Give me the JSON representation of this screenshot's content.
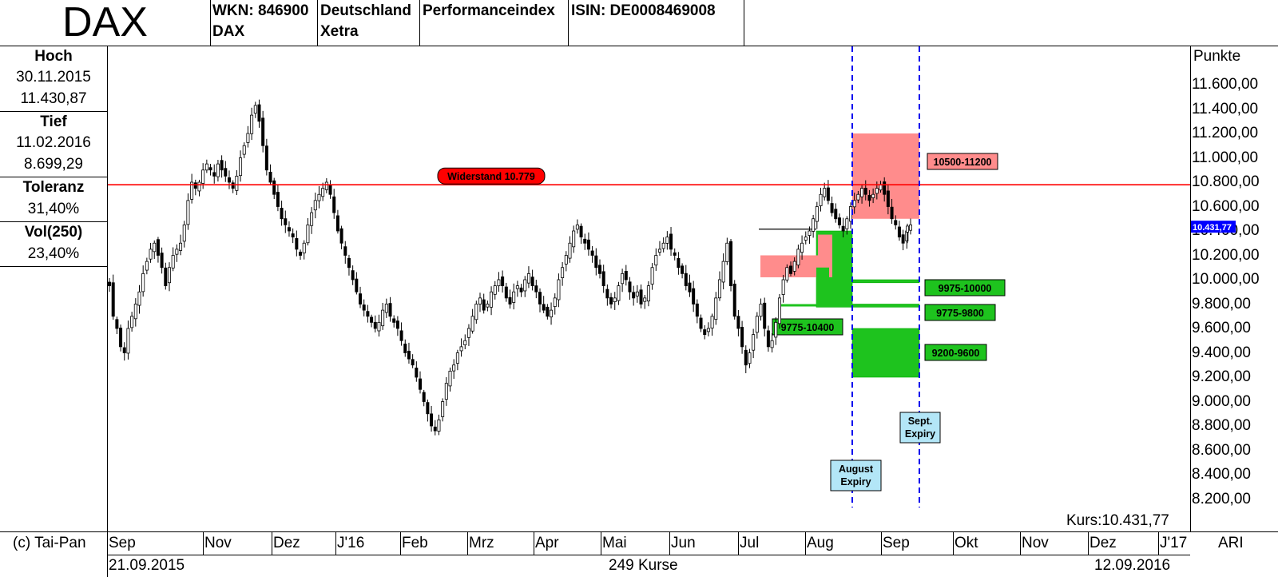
{
  "header": {
    "title": "DAX",
    "wkn": "WKN: 846900",
    "wkn_sub": "DAX",
    "country": "Deutschland",
    "exchange": "Xetra",
    "index_type": "Performanceindex",
    "isin": "ISIN: DE0008469008"
  },
  "sidebar": {
    "high_label": "Hoch",
    "high_date": "30.11.2015",
    "high_value": "11.430,87",
    "low_label": "Tief",
    "low_date": "11.02.2016",
    "low_value": "8.699,29",
    "tolerance_label": "Toleranz",
    "tolerance_value": "31,40%",
    "vol_label": "Vol(250)",
    "vol_value": "23,40%"
  },
  "footer": {
    "copyright": "(c) Tai-Pan",
    "start_date": "21.09.2015",
    "count": "249 Kurse",
    "end_date": "12.09.2016",
    "indicator": "ARI"
  },
  "chart_data": {
    "type": "candlestick",
    "ylabel": "Punkte",
    "ylim": [
      8100,
      11850
    ],
    "y_ticks": [
      "8.200,00",
      "8.400,00",
      "8.600,00",
      "8.800,00",
      "9.000,00",
      "9.200,00",
      "9.400,00",
      "9.600,00",
      "9.800,00",
      "10.000,00",
      "10.200,00",
      "10.400,00",
      "10.600,00",
      "10.800,00",
      "11.000,00",
      "11.200,00",
      "11.400,00",
      "11.600,00"
    ],
    "y_tick_values": [
      8200,
      8400,
      8600,
      8800,
      9000,
      9200,
      9400,
      9600,
      9800,
      10000,
      10200,
      10400,
      10600,
      10800,
      11000,
      11200,
      11400,
      11600
    ],
    "x_months": [
      "Sep",
      "Nov",
      "Dez",
      "J'16",
      "Feb",
      "Mrz",
      "Apr",
      "Mai",
      "Jun",
      "Jul",
      "Aug",
      "Sep",
      "Okt",
      "Nov",
      "Dez",
      "J'17"
    ],
    "current_price": "10.431,77",
    "price_label": "Kurs:10.431,77",
    "current_value": 10431.77,
    "resistance": {
      "label": "Widerstand 10.779",
      "value": 10779
    },
    "expiry_labels": [
      {
        "line1": "August",
        "line2": "Expiry"
      },
      {
        "line1": "Sept.",
        "line2": "Expiry"
      }
    ],
    "zones": [
      {
        "label": "10500-11200",
        "low": 10500,
        "high": 11200,
        "color": "#ff8c8c"
      },
      {
        "label": "9975-10000",
        "low": 9975,
        "high": 10000,
        "color": "#1ec31e"
      },
      {
        "label": "9775-9800",
        "low": 9775,
        "high": 9800,
        "color": "#1ec31e"
      },
      {
        "label": "9775-10400",
        "low": 9775,
        "high": 10400,
        "color": "#1ec31e"
      },
      {
        "label": "9200-9600",
        "low": 9200,
        "high": 9600,
        "color": "#1ec31e"
      }
    ],
    "series_close": [
      9950,
      9700,
      9600,
      9450,
      9400,
      9600,
      9700,
      9800,
      9900,
      10050,
      10150,
      10250,
      10300,
      10200,
      10100,
      9950,
      10100,
      10200,
      10250,
      10300,
      10450,
      10650,
      10800,
      10750,
      10800,
      10900,
      10950,
      10900,
      10850,
      10950,
      10900,
      10850,
      10800,
      10750,
      10850,
      11000,
      11100,
      11200,
      11350,
      11430,
      11300,
      11100,
      10900,
      10800,
      10700,
      10600,
      10500,
      10450,
      10400,
      10350,
      10250,
      10200,
      10300,
      10450,
      10550,
      10650,
      10700,
      10750,
      10800,
      10700,
      10550,
      10400,
      10300,
      10200,
      10100,
      10000,
      9900,
      9800,
      9750,
      9700,
      9650,
      9600,
      9650,
      9750,
      9800,
      9700,
      9650,
      9600,
      9500,
      9400,
      9350,
      9300,
      9200,
      9100,
      9000,
      8900,
      8800,
      8760,
      8850,
      9000,
      9150,
      9250,
      9300,
      9400,
      9450,
      9500,
      9600,
      9700,
      9800,
      9850,
      9750,
      9800,
      9900,
      9950,
      10000,
      9950,
      9850,
      9800,
      9900,
      9950,
      9900,
      10000,
      10050,
      9950,
      9900,
      9800,
      9750,
      9700,
      9750,
      9850,
      10000,
      10100,
      10200,
      10300,
      10400,
      10450,
      10350,
      10300,
      10250,
      10200,
      10100,
      10050,
      9950,
      9850,
      9800,
      9850,
      9950,
      10050,
      10000,
      9900,
      9850,
      9900,
      9800,
      9850,
      9950,
      10100,
      10200,
      10250,
      10300,
      10350,
      10250,
      10200,
      10100,
      10050,
      9950,
      9900,
      9800,
      9700,
      9600,
      9550,
      9600,
      9700,
      9850,
      10000,
      10150,
      10300,
      9950,
      9700,
      9600,
      9450,
      9300,
      9400,
      9550,
      9700,
      9800,
      9600,
      9450,
      9500,
      9650,
      9850,
      10000,
      10100,
      10050,
      10150,
      10250,
      10300,
      10350,
      10400,
      10500,
      10600,
      10700,
      10750,
      10650,
      10550,
      10500,
      10450,
      10400,
      10500,
      10600,
      10650,
      10700,
      10750,
      10700,
      10650,
      10700,
      10750,
      10780,
      10700,
      10600,
      10500,
      10450,
      10350,
      10300,
      10400,
      10450
    ]
  }
}
